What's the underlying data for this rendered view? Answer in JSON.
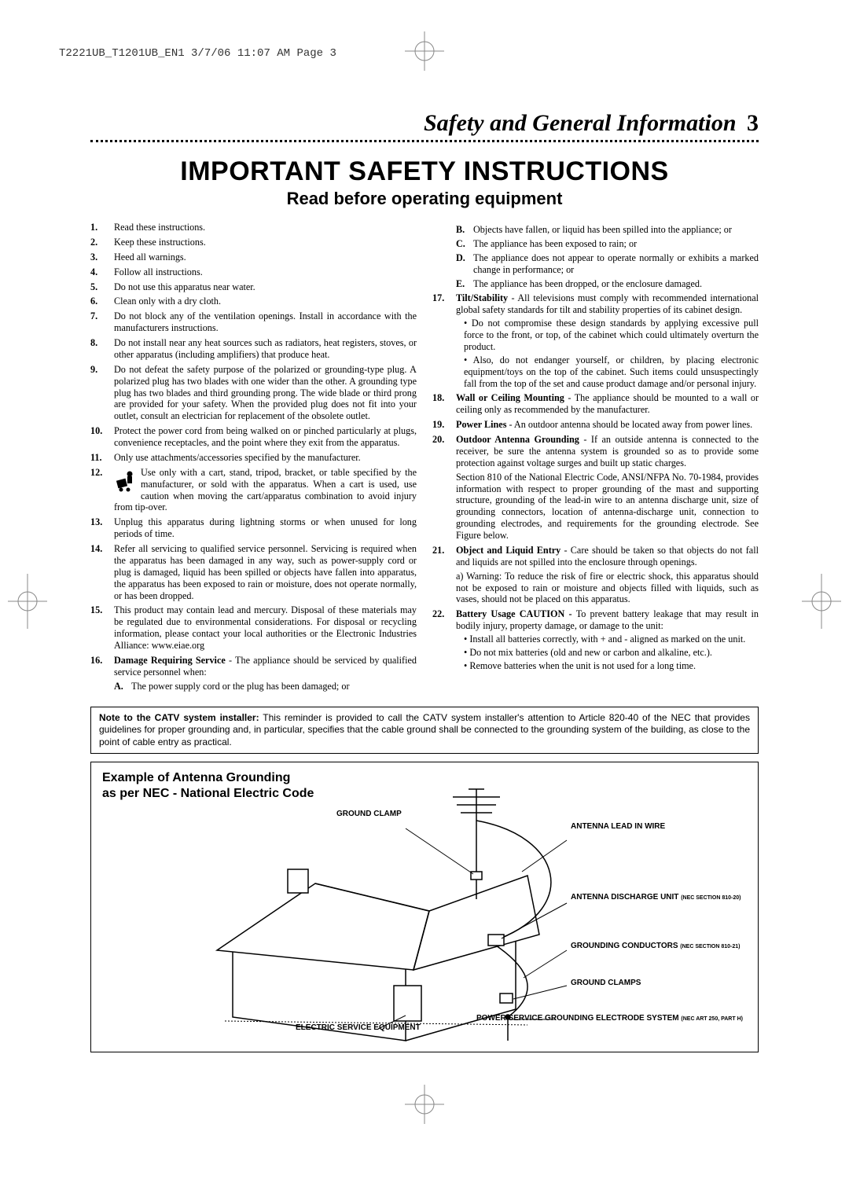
{
  "header_slug": "T2221UB_T1201UB_EN1  3/7/06  11:07 AM  Page 3",
  "section_title": "Safety and General Information",
  "page_number": "3",
  "main_title": "IMPORTANT SAFETY INSTRUCTIONS",
  "subtitle": "Read before operating equipment",
  "left_items": [
    {
      "n": "1.",
      "t": "Read these instructions."
    },
    {
      "n": "2.",
      "t": "Keep these instructions."
    },
    {
      "n": "3.",
      "t": "Heed all warnings."
    },
    {
      "n": "4.",
      "t": "Follow all instructions."
    },
    {
      "n": "5.",
      "t": "Do not use this apparatus near water."
    },
    {
      "n": "6.",
      "t": "Clean only with a dry cloth."
    },
    {
      "n": "7.",
      "t": "Do not block any of the ventilation openings. Install in accordance with the manufacturers instructions."
    },
    {
      "n": "8.",
      "t": "Do not install near any heat sources such as radiators, heat registers, stoves, or other apparatus (including amplifiers) that produce heat."
    },
    {
      "n": "9.",
      "t": "Do not defeat the safety purpose of the polarized or grounding-type plug. A polarized plug has two blades with one wider than the other. A grounding type plug has two blades and third grounding prong. The wide blade or third prong are provided for your safety. When the provided plug does not fit into your outlet, consult an electrician for replacement of the obsolete outlet."
    },
    {
      "n": "10.",
      "t": "Protect the power cord from being walked on or pinched particularly at plugs, convenience receptacles, and the point where they exit from the apparatus."
    },
    {
      "n": "11.",
      "t": "Only use attachments/accessories specified by the manufacturer."
    },
    {
      "n": "12.",
      "t": "Use only with a cart, stand, tripod, bracket, or table specified by the manufacturer, or sold with the apparatus. When a cart is used, use caution when moving the cart/apparatus combination to avoid injury from tip-over.",
      "icon": true
    },
    {
      "n": "13.",
      "t": "Unplug this apparatus during lightning storms or when unused for long periods of time."
    },
    {
      "n": "14.",
      "t": "Refer all servicing to qualified service personnel. Servicing is required when the apparatus has been damaged in any way, such as power-supply cord or plug is damaged, liquid has been spilled or objects have fallen into apparatus, the apparatus has been exposed to rain or moisture, does not operate normally, or has been dropped."
    },
    {
      "n": "15.",
      "t": "This product may contain lead and mercury. Disposal of these materials may be regulated due to environmental considerations. For disposal or recycling information, please contact your local authorities or the Electronic Industries Alliance: www.eiae.org"
    },
    {
      "n": "16.",
      "bold": "Damage Requiring Service",
      "t": " - The appliance should be serviced by qualified service personnel when:",
      "subs": [
        {
          "l": "A.",
          "t": "The power supply cord or the plug has been damaged; or"
        }
      ]
    }
  ],
  "right_pre_subs": [
    {
      "l": "B.",
      "t": "Objects have fallen, or liquid has been spilled into the appliance; or"
    },
    {
      "l": "C.",
      "t": "The appliance has been exposed to rain; or"
    },
    {
      "l": "D.",
      "t": "The appliance does not appear to operate normally or exhibits a marked change in performance; or"
    },
    {
      "l": "E.",
      "t": "The appliance has been dropped, or the enclosure damaged."
    }
  ],
  "right_items": [
    {
      "n": "17.",
      "bold": "Tilt/Stability",
      "t": " - All televisions must comply with recommended international global safety standards for tilt and stability properties of its cabinet design.",
      "bullets": [
        "• Do not compromise these design standards by applying excessive pull force to the front, or top, of the cabinet which could ultimately overturn the product.",
        "• Also, do not endanger yourself, or children, by placing electronic equipment/toys on the top of the cabinet. Such items could unsuspectingly fall from the top of the set and cause product damage and/or personal injury."
      ]
    },
    {
      "n": "18.",
      "bold": "Wall or Ceiling Mounting",
      "t": " - The appliance should be mounted to a wall or ceiling only as recommended by the manufacturer."
    },
    {
      "n": "19.",
      "bold": "Power Lines",
      "t": " - An outdoor antenna should be located away from power lines."
    },
    {
      "n": "20.",
      "bold": "Outdoor Antenna Grounding",
      "t": " - If an outside antenna is connected to the receiver, be sure the antenna system is grounded so as to provide some protection against voltage surges and built up static charges.",
      "plain": "Section 810 of the National Electric Code, ANSI/NFPA No. 70-1984, provides information with respect to proper grounding of the mast and supporting structure, grounding of the lead-in wire to an antenna discharge unit, size of grounding connectors, location of antenna-discharge unit, connection to grounding electrodes, and requirements for the grounding electrode. See Figure below."
    },
    {
      "n": "21.",
      "bold": "Object and Liquid Entry",
      "t": " - Care should be taken so that objects do not fall and liquids are not spilled into the enclosure through openings.",
      "plain": "a) Warning: To reduce the risk of fire or electric shock, this apparatus should not be exposed to rain or moisture and objects filled with liquids, such as vases, should not be placed on this apparatus."
    },
    {
      "n": "22.",
      "bold": "Battery Usage CAUTION - ",
      "t": "To prevent battery leakage that may result in bodily injury, property damage, or damage to the unit:",
      "bullets": [
        "• Install all batteries correctly, with + and - aligned as marked on the unit.",
        "• Do not mix batteries (old and new or carbon and alkaline, etc.).",
        "• Remove batteries when the unit is not used for a long time."
      ]
    }
  ],
  "note_bold": "Note to the CATV system installer:",
  "note_text": " This reminder is provided to call the CATV system installer's attention to Article 820-40 of the NEC that provides guidelines for proper grounding and, in particular, specifies that the cable ground shall be connected to the grounding system of the building, as close to the point of cable entry as practical.",
  "diagram_title_l1": "Example of Antenna Grounding",
  "diagram_title_l2": "as per NEC - National Electric Code",
  "diagram_labels": {
    "ground_clamp": "GROUND CLAMP",
    "antenna_lead": "ANTENNA LEAD IN WIRE",
    "discharge_unit": "ANTENNA DISCHARGE UNIT",
    "discharge_unit_ref": "(NEC SECTION 810-20)",
    "grounding_conductors": "GROUNDING CONDUCTORS",
    "grounding_conductors_ref": "(NEC SECTION 810-21)",
    "ground_clamps": "GROUND CLAMPS",
    "power_electrode": "POWER SERVICE GROUNDING ELECTRODE SYSTEM",
    "power_electrode_ref": "(NEC ART 250, PART H)",
    "electric_service": "ELECTRIC SERVICE EQUIPMENT"
  },
  "colors": {
    "text": "#000000",
    "bg": "#ffffff",
    "crop": "#888888"
  }
}
